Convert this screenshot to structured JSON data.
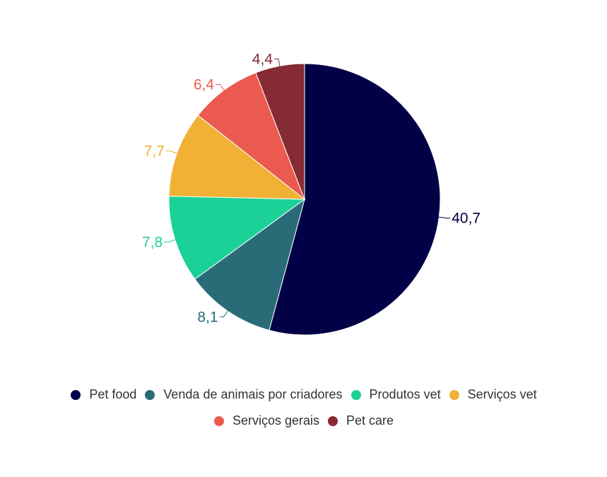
{
  "chart_data": {
    "type": "pie",
    "categories": [
      "Pet food",
      "Venda de animais por criadores",
      "Produtos vet",
      "Serviços vet",
      "Serviços gerais",
      "Pet care"
    ],
    "values": [
      40.7,
      8.1,
      7.8,
      7.7,
      6.4,
      4.4
    ],
    "data_labels": [
      "40,7",
      "8,1",
      "7,8",
      "7,7",
      "6,4",
      "4,4"
    ],
    "colors": [
      "#020046",
      "#2a6b78",
      "#1bd198",
      "#f0b135",
      "#ea5a4e",
      "#862a33"
    ],
    "start_angle": "top",
    "direction": "clockwise",
    "legend_position": "bottom"
  }
}
